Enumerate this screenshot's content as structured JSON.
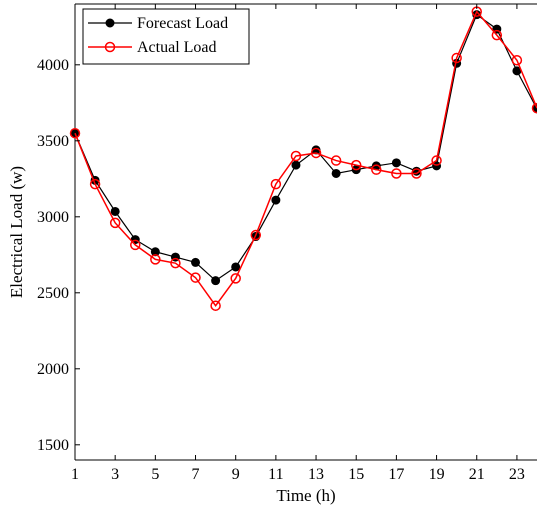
{
  "chart_data": {
    "type": "line",
    "xlabel": "Time (h)",
    "ylabel": "Electrical Load (w)",
    "xlim": [
      1,
      24
    ],
    "ylim": [
      1400,
      4400
    ],
    "xticks": [
      1,
      3,
      5,
      7,
      9,
      11,
      13,
      15,
      17,
      19,
      21,
      23
    ],
    "yticks": [
      1500,
      2000,
      2500,
      3000,
      3500,
      4000
    ],
    "grid": false,
    "legend_position": "top-left",
    "x": [
      1,
      2,
      3,
      4,
      5,
      6,
      7,
      8,
      9,
      10,
      11,
      12,
      13,
      14,
      15,
      16,
      17,
      18,
      19,
      20,
      21,
      22,
      23,
      24
    ],
    "series": [
      {
        "name": "Forecast Load",
        "color": "#000000",
        "marker": "filled-circle",
        "values": [
          3550,
          3240,
          3035,
          2850,
          2770,
          2735,
          2700,
          2580,
          2670,
          2870,
          3110,
          3340,
          3440,
          3285,
          3310,
          3335,
          3355,
          3300,
          3335,
          4010,
          4330,
          4235,
          3960,
          3710
        ]
      },
      {
        "name": "Actual Load",
        "color": "#ff0000",
        "marker": "open-circle",
        "values": [
          3550,
          3215,
          2960,
          2815,
          2720,
          2695,
          2600,
          2415,
          2595,
          2880,
          3215,
          3400,
          3420,
          3370,
          3340,
          3310,
          3285,
          3285,
          3370,
          4045,
          4350,
          4195,
          4030,
          3715
        ]
      }
    ]
  }
}
